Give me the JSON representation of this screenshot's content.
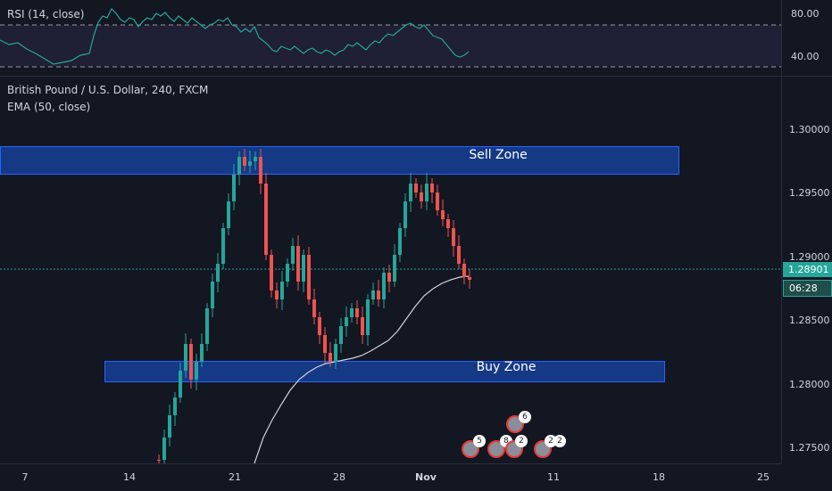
{
  "rsi": {
    "legend": "RSI (14, close)",
    "axis_labels": [
      "80.00",
      "40.00"
    ],
    "color": "#26a69a"
  },
  "main": {
    "legend_symbol": "British Pound / U.S. Dollar, 240, FXCM",
    "legend_ema": "EMA (50, close)",
    "price_labels": [
      "1.30000",
      "1.29500",
      "1.29000",
      "1.28500",
      "1.28000",
      "1.27500"
    ],
    "current_price": "1.28901",
    "countdown": "06:28",
    "zones": {
      "sell": "Sell Zone",
      "buy": "Buy Zone"
    },
    "colors": {
      "up": "#26a69a",
      "down": "#ef5350",
      "zone": "#1e3f8f",
      "price_tag": "#26a69a"
    }
  },
  "time_axis": {
    "labels": [
      "7",
      "14",
      "21",
      "28",
      "Nov",
      "11",
      "18",
      "25"
    ]
  },
  "events": {
    "counts": [
      "6",
      "5",
      "8",
      "2",
      "2",
      "2"
    ],
    "icons": [
      "uk-flag-icon",
      "us-flag-icon"
    ]
  }
}
